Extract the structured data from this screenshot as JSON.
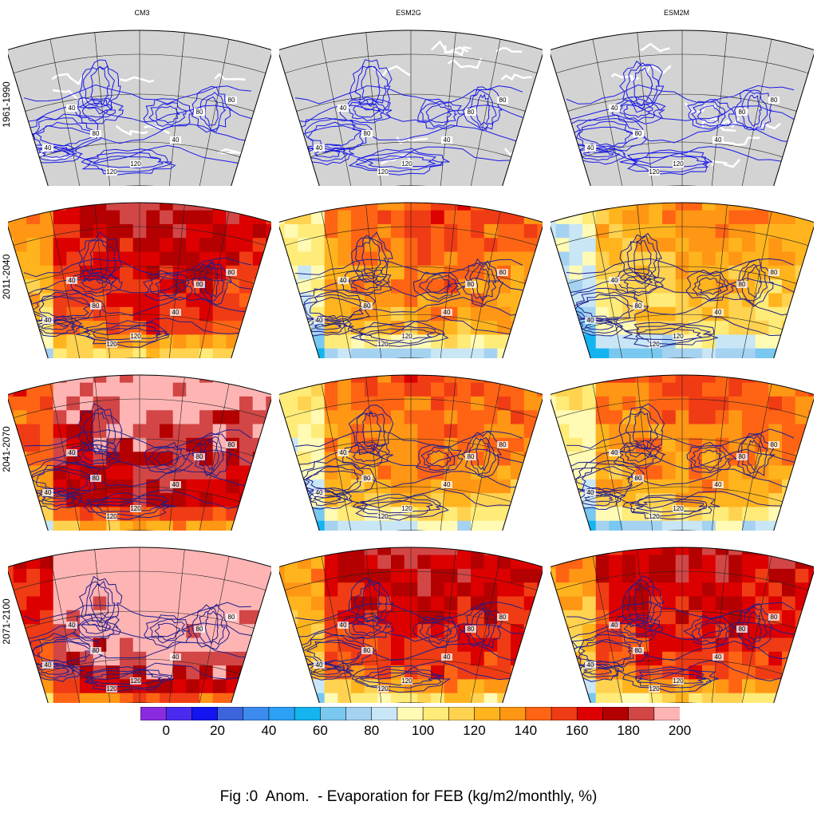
{
  "figure": {
    "caption": "Fig :0  Anom.  - Evaporation for FEB (kg/m2/monthly, %)",
    "columns": [
      "CM3",
      "ESM2G",
      "ESM2M"
    ],
    "rows": [
      "1961-1990",
      "2011-2040",
      "2041-2070",
      "2071-2100"
    ],
    "baseline_fill": "#d3d3d3",
    "land_outline_color": "#ffffff",
    "contour_color": "#1a1ae6",
    "contour_labels": [
      "40",
      "80",
      "120"
    ]
  },
  "colorbar": {
    "colors": [
      "#8a2be2",
      "#4b2af0",
      "#1414f0",
      "#3c64dc",
      "#3c8cf0",
      "#2ca0f5",
      "#14b4f0",
      "#78c8f0",
      "#a5d2f0",
      "#c8e6f5",
      "#fffab4",
      "#ffeb78",
      "#ffd250",
      "#ffb41e",
      "#ff9614",
      "#ff6414",
      "#f03c14",
      "#dc0000",
      "#b40000",
      "#d24646",
      "#ffb4b4"
    ],
    "tick_labels": [
      "0",
      "20",
      "40",
      "60",
      "80",
      "100",
      "120",
      "140",
      "160",
      "180",
      "200"
    ]
  },
  "panels": [
    {
      "row": 0,
      "col": 0,
      "intensity": "none"
    },
    {
      "row": 0,
      "col": 1,
      "intensity": "none"
    },
    {
      "row": 0,
      "col": 2,
      "intensity": "none"
    },
    {
      "row": 1,
      "col": 0,
      "intensity": "high"
    },
    {
      "row": 1,
      "col": 1,
      "intensity": "moderate"
    },
    {
      "row": 1,
      "col": 2,
      "intensity": "low"
    },
    {
      "row": 2,
      "col": 0,
      "intensity": "very-high"
    },
    {
      "row": 2,
      "col": 1,
      "intensity": "moderate"
    },
    {
      "row": 2,
      "col": 2,
      "intensity": "moderate"
    },
    {
      "row": 3,
      "col": 0,
      "intensity": "extreme"
    },
    {
      "row": 3,
      "col": 1,
      "intensity": "high"
    },
    {
      "row": 3,
      "col": 2,
      "intensity": "high"
    }
  ]
}
